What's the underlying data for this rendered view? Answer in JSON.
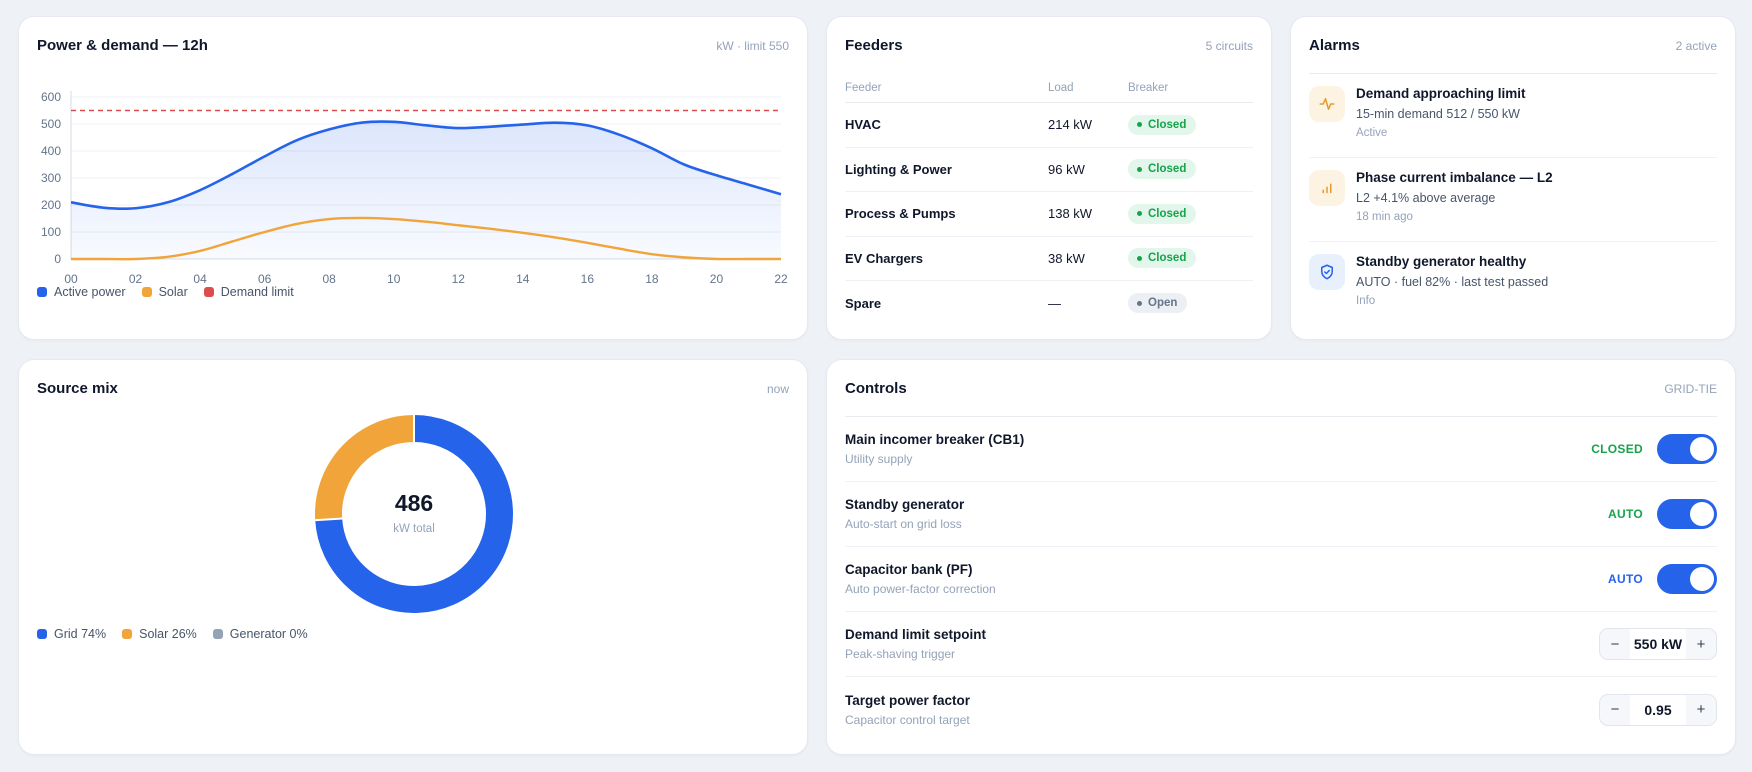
{
  "power_card": {
    "title": "Power & demand — 12h",
    "meta": "kW · limit 550",
    "legend": [
      {
        "label": "Active power",
        "color": "#2563eb"
      },
      {
        "label": "Solar",
        "color": "#f0a43a"
      },
      {
        "label": "Demand limit",
        "color": "#dc4c4c"
      }
    ]
  },
  "chart_data": {
    "type": "line",
    "title": "Power & demand — 12h",
    "xlabel": "",
    "ylabel": "",
    "x": [
      "00",
      "01",
      "02",
      "03",
      "04",
      "05",
      "06",
      "07",
      "08",
      "09",
      "10",
      "11",
      "12",
      "13",
      "14",
      "15",
      "16",
      "17",
      "18",
      "19",
      "20",
      "21",
      "22"
    ],
    "series": [
      {
        "name": "Active power",
        "color": "#2563eb",
        "values": [
          210,
          190,
          188,
          210,
          255,
          315,
          380,
          440,
          480,
          505,
          508,
          495,
          485,
          490,
          498,
          505,
          495,
          460,
          410,
          350,
          310,
          275,
          240
        ]
      },
      {
        "name": "Solar",
        "color": "#f0a43a",
        "values": [
          0,
          0,
          0,
          8,
          30,
          65,
          100,
          130,
          148,
          152,
          148,
          138,
          125,
          112,
          97,
          80,
          60,
          38,
          18,
          6,
          0,
          0,
          0
        ]
      }
    ],
    "demand_limit": 550,
    "ylim": [
      0,
      600
    ],
    "yticks": [
      0,
      100,
      200,
      300,
      400,
      500,
      600
    ],
    "xticks": [
      "00",
      "02",
      "04",
      "06",
      "08",
      "10",
      "12",
      "14",
      "16",
      "18",
      "20",
      "22"
    ],
    "grid": true,
    "legend_position": "bottom-left"
  },
  "feeders": {
    "title": "Feeders",
    "meta": "5 circuits",
    "headers": [
      "Feeder",
      "Load",
      "Breaker"
    ],
    "rows": [
      {
        "name": "HVAC",
        "load": "214 kW",
        "breaker": "Closed",
        "state": "closed"
      },
      {
        "name": "Lighting & Power",
        "load": "96 kW",
        "breaker": "Closed",
        "state": "closed"
      },
      {
        "name": "Process & Pumps",
        "load": "138 kW",
        "breaker": "Closed",
        "state": "closed"
      },
      {
        "name": "EV Chargers",
        "load": "38 kW",
        "breaker": "Closed",
        "state": "closed"
      },
      {
        "name": "Spare",
        "load": "—",
        "breaker": "Open",
        "state": "open"
      }
    ]
  },
  "alarms": {
    "title": "Alarms",
    "meta": "2 active",
    "items": [
      {
        "icon": "pulse-icon",
        "title": "Demand approaching limit",
        "desc": "15-min demand 512 / 550 kW",
        "time": "Active"
      },
      {
        "icon": "signal-bars-icon",
        "title": "Phase current imbalance — L2",
        "desc": "L2 +4.1% above average",
        "time": "18 min ago"
      },
      {
        "icon": "shield-check-icon",
        "title": "Standby generator healthy",
        "desc": "AUTO · fuel 82% · last test passed",
        "time": "Info"
      }
    ]
  },
  "source_mix": {
    "title": "Source mix",
    "meta": "now",
    "total": "486",
    "total_label": "kW total",
    "slices": [
      {
        "label": "Grid 74%",
        "value": 74,
        "color": "#2563eb"
      },
      {
        "label": "Solar 26%",
        "value": 26,
        "color": "#f0a43a"
      },
      {
        "label": "Generator 0%",
        "value": 0,
        "color": "#94a3b8"
      }
    ]
  },
  "controls": {
    "title": "Controls",
    "meta": "GRID-TIE",
    "toggles": [
      {
        "label": "Main incomer breaker (CB1)",
        "sub": "Utility supply",
        "state": "CLOSED",
        "state_color": "#16a34a",
        "on": true
      },
      {
        "label": "Standby generator",
        "sub": "Auto-start on grid loss",
        "state": "AUTO",
        "state_color": "#16a34a",
        "on": true
      },
      {
        "label": "Capacitor bank (PF)",
        "sub": "Auto power-factor correction",
        "state": "AUTO",
        "state_color": "#2563eb",
        "on": true
      }
    ],
    "steppers": [
      {
        "label": "Demand limit setpoint",
        "sub": "Peak-shaving trigger",
        "value": "550 kW",
        "minus": "−",
        "plus": "+"
      },
      {
        "label": "Target power factor",
        "sub": "Capacitor control target",
        "value": "0.95",
        "minus": "−",
        "plus": "+"
      }
    ]
  }
}
